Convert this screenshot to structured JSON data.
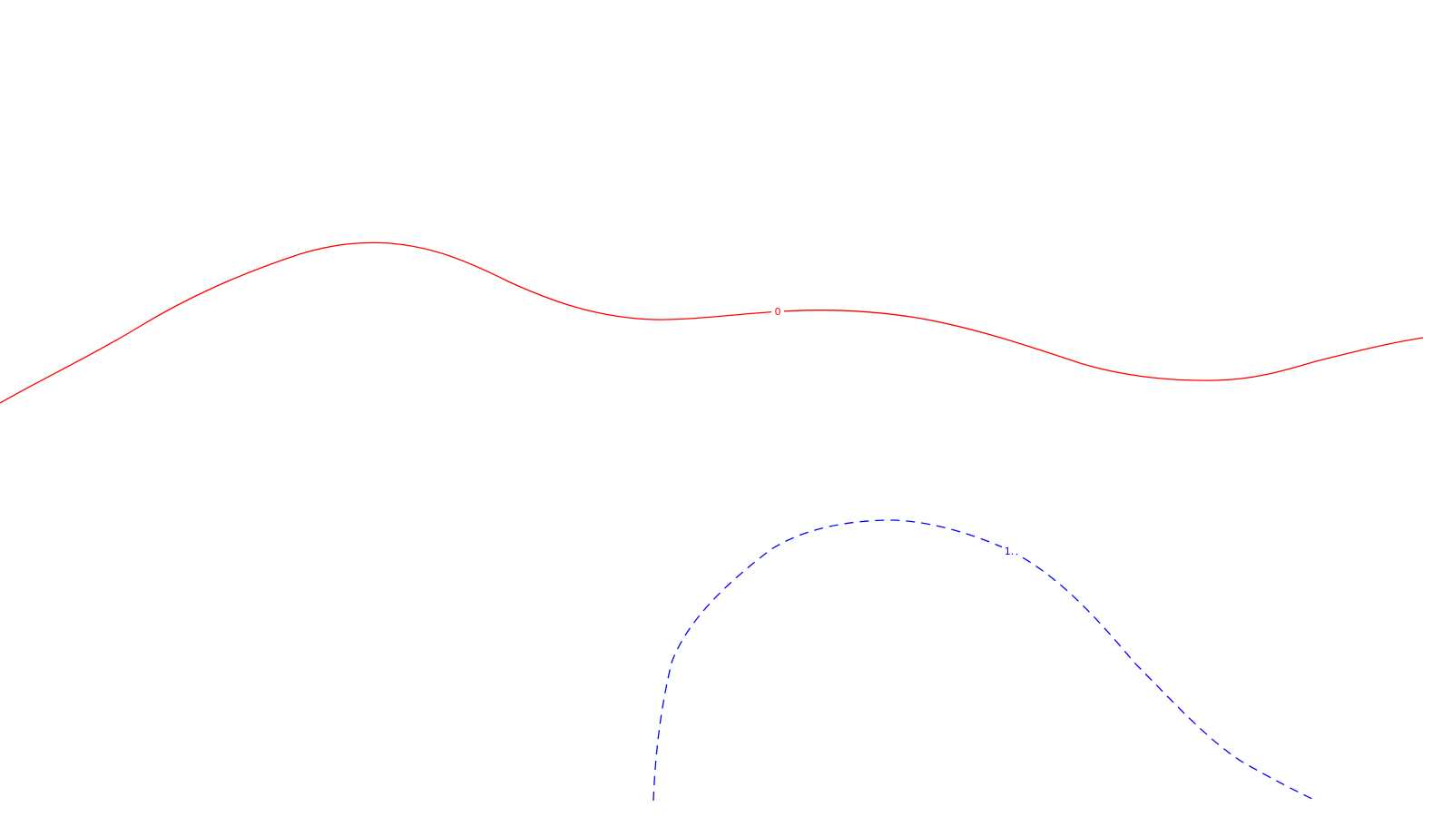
{
  "contours": [
    {
      "id": "contour-0",
      "label": "0",
      "color": "#ff0000",
      "line_style": "solid"
    },
    {
      "id": "contour-1",
      "label": "1.",
      "color": "#0000ff",
      "line_style": "dashed"
    }
  ]
}
